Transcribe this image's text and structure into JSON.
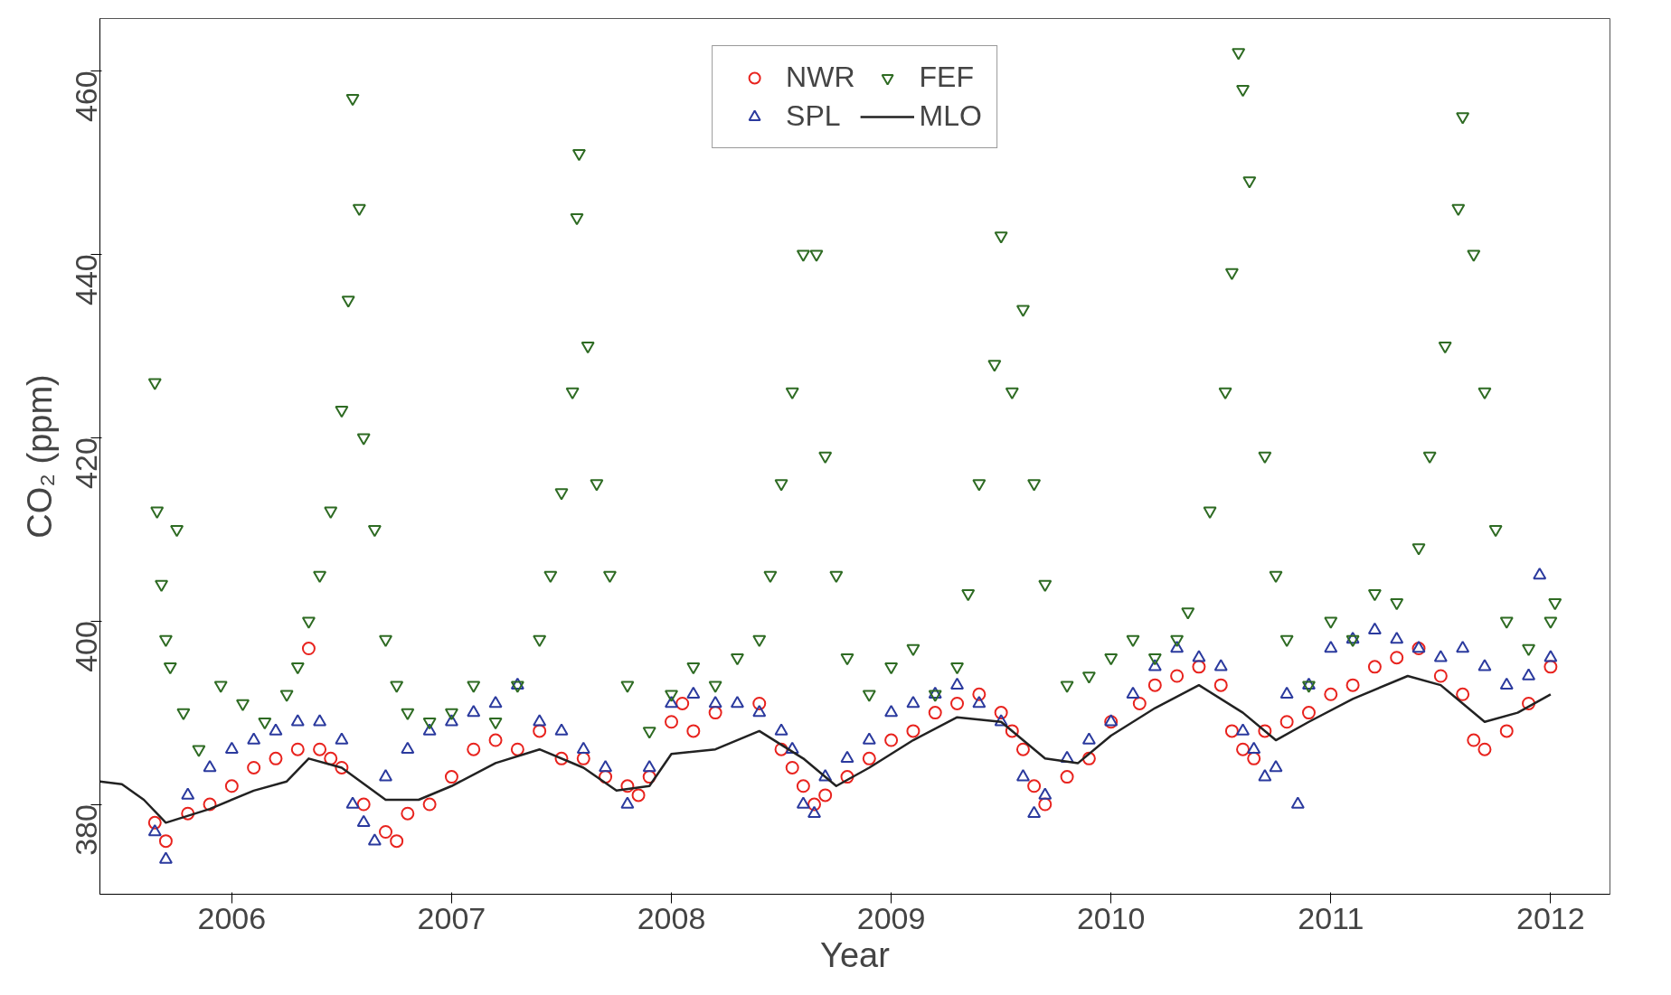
{
  "chart_data": {
    "type": "scatter",
    "xlabel": "Year",
    "ylabel": "CO₂ (ppm)",
    "xlim": [
      2005.4,
      2012.27
    ],
    "ylim": [
      370.2,
      465.7
    ],
    "xticks": [
      2006,
      2007,
      2008,
      2009,
      2010,
      2011,
      2012
    ],
    "yticks": [
      380,
      400,
      420,
      440,
      460
    ],
    "grid": false,
    "legend": "top",
    "series": [
      {
        "name": "NWR",
        "color": "#e8231e",
        "marker": "circle",
        "x": [
          2005.65,
          2005.7,
          2005.8,
          2005.9,
          2006.0,
          2006.1,
          2006.2,
          2006.3,
          2006.35,
          2006.4,
          2006.45,
          2006.5,
          2006.6,
          2006.7,
          2006.75,
          2006.8,
          2006.9,
          2007.0,
          2007.1,
          2007.2,
          2007.3,
          2007.4,
          2007.5,
          2007.6,
          2007.7,
          2007.8,
          2007.85,
          2007.9,
          2008.0,
          2008.05,
          2008.1,
          2008.2,
          2008.4,
          2008.5,
          2008.55,
          2008.6,
          2008.65,
          2008.7,
          2008.8,
          2008.9,
          2009.0,
          2009.1,
          2009.2,
          2009.3,
          2009.4,
          2009.5,
          2009.55,
          2009.6,
          2009.65,
          2009.7,
          2009.8,
          2009.9,
          2010.0,
          2010.13,
          2010.2,
          2010.3,
          2010.4,
          2010.5,
          2010.55,
          2010.6,
          2010.65,
          2010.7,
          2010.8,
          2010.9,
          2011.0,
          2011.1,
          2011.2,
          2011.3,
          2011.4,
          2011.5,
          2011.6,
          2011.65,
          2011.7,
          2011.8,
          2011.9,
          2012.0
        ],
        "values": [
          378,
          376,
          379,
          380,
          382,
          384,
          385,
          386,
          397,
          386,
          385,
          384,
          380,
          377,
          376,
          379,
          380,
          383,
          386,
          387,
          386,
          388,
          385,
          385,
          383,
          382,
          381,
          383,
          389,
          391,
          388,
          390,
          391,
          386,
          384,
          382,
          380,
          381,
          383,
          385,
          387,
          388,
          390,
          391,
          392,
          390,
          388,
          386,
          382,
          380,
          383,
          385,
          389,
          391,
          393,
          394,
          395,
          393,
          388,
          386,
          385,
          388,
          389,
          390,
          392,
          393,
          395,
          396,
          397,
          394,
          392,
          387,
          386,
          388,
          391,
          395
        ]
      },
      {
        "name": "SPL",
        "color": "#2b3a9e",
        "marker": "triangle",
        "x": [
          2005.65,
          2005.7,
          2005.8,
          2005.9,
          2006.0,
          2006.1,
          2006.2,
          2006.3,
          2006.4,
          2006.5,
          2006.55,
          2006.6,
          2006.65,
          2006.7,
          2006.8,
          2006.9,
          2007.0,
          2007.1,
          2007.2,
          2007.3,
          2007.4,
          2007.5,
          2007.6,
          2007.7,
          2007.8,
          2007.9,
          2008.0,
          2008.1,
          2008.2,
          2008.3,
          2008.4,
          2008.5,
          2008.55,
          2008.6,
          2008.65,
          2008.7,
          2008.8,
          2008.9,
          2009.0,
          2009.1,
          2009.2,
          2009.3,
          2009.4,
          2009.5,
          2009.6,
          2009.65,
          2009.7,
          2009.8,
          2009.9,
          2010.0,
          2010.1,
          2010.2,
          2010.3,
          2010.4,
          2010.5,
          2010.6,
          2010.65,
          2010.7,
          2010.75,
          2010.8,
          2010.85,
          2010.9,
          2011.0,
          2011.1,
          2011.2,
          2011.3,
          2011.4,
          2011.5,
          2011.6,
          2011.7,
          2011.8,
          2011.9,
          2011.95,
          2012.0
        ],
        "values": [
          377,
          374,
          381,
          384,
          386,
          387,
          388,
          389,
          389,
          387,
          380,
          378,
          376,
          383,
          386,
          388,
          389,
          390,
          391,
          393,
          389,
          388,
          386,
          384,
          380,
          384,
          391,
          392,
          391,
          391,
          390,
          388,
          386,
          380,
          379,
          383,
          385,
          387,
          390,
          391,
          392,
          393,
          391,
          389,
          383,
          379,
          381,
          385,
          387,
          389,
          392,
          395,
          397,
          396,
          395,
          388,
          386,
          383,
          384,
          392,
          380,
          393,
          397,
          398,
          399,
          398,
          397,
          396,
          397,
          395,
          393,
          394,
          405,
          396
        ]
      },
      {
        "name": "FEF",
        "color": "#2e6b23",
        "marker": "triangle_down",
        "x": [
          2005.65,
          2005.66,
          2005.68,
          2005.7,
          2005.72,
          2005.75,
          2005.78,
          2005.85,
          2005.95,
          2006.05,
          2006.15,
          2006.25,
          2006.3,
          2006.35,
          2006.4,
          2006.45,
          2006.5,
          2006.53,
          2006.55,
          2006.58,
          2006.6,
          2006.65,
          2006.7,
          2006.75,
          2006.8,
          2006.9,
          2007.0,
          2007.1,
          2007.2,
          2007.3,
          2007.4,
          2007.45,
          2007.5,
          2007.55,
          2007.57,
          2007.58,
          2007.62,
          2007.66,
          2007.72,
          2007.8,
          2007.9,
          2008.0,
          2008.1,
          2008.2,
          2008.3,
          2008.4,
          2008.45,
          2008.5,
          2008.55,
          2008.6,
          2008.66,
          2008.7,
          2008.75,
          2008.8,
          2008.9,
          2009.0,
          2009.1,
          2009.2,
          2009.3,
          2009.35,
          2009.4,
          2009.47,
          2009.5,
          2009.55,
          2009.6,
          2009.65,
          2009.7,
          2009.8,
          2009.9,
          2010.0,
          2010.1,
          2010.2,
          2010.3,
          2010.35,
          2010.45,
          2010.52,
          2010.55,
          2010.58,
          2010.6,
          2010.63,
          2010.7,
          2010.75,
          2010.8,
          2010.9,
          2011.0,
          2011.1,
          2011.2,
          2011.3,
          2011.4,
          2011.45,
          2011.52,
          2011.58,
          2011.6,
          2011.65,
          2011.7,
          2011.75,
          2011.8,
          2011.9,
          2012.0,
          2012.02
        ],
        "values": [
          426,
          412,
          404,
          398,
          395,
          410,
          390,
          386,
          393,
          391,
          389,
          392,
          395,
          400,
          405,
          412,
          423,
          435,
          457,
          445,
          420,
          410,
          398,
          393,
          390,
          389,
          390,
          393,
          389,
          393,
          398,
          405,
          414,
          425,
          444,
          451,
          430,
          415,
          405,
          393,
          388,
          392,
          395,
          393,
          396,
          398,
          405,
          415,
          425,
          440,
          440,
          418,
          405,
          396,
          392,
          395,
          397,
          392,
          395,
          403,
          415,
          428,
          442,
          425,
          434,
          415,
          404,
          393,
          394,
          396,
          398,
          396,
          398,
          401,
          412,
          425,
          438,
          462,
          458,
          448,
          418,
          405,
          398,
          393,
          400,
          398,
          403,
          402,
          408,
          418,
          430,
          445,
          455,
          440,
          425,
          410,
          400,
          397,
          400,
          402
        ]
      },
      {
        "name": "MLO",
        "color": "#222222",
        "type": "line",
        "line_style": "solid",
        "x": [
          2005.4,
          2005.5,
          2005.6,
          2005.7,
          2005.9,
          2006.1,
          2006.25,
          2006.35,
          2006.5,
          2006.7,
          2006.85,
          2007.0,
          2007.2,
          2007.4,
          2007.6,
          2007.75,
          2007.9,
          2008.0,
          2008.2,
          2008.4,
          2008.6,
          2008.75,
          2008.9,
          2009.1,
          2009.3,
          2009.5,
          2009.7,
          2009.85,
          2010.0,
          2010.2,
          2010.4,
          2010.6,
          2010.75,
          2010.9,
          2011.1,
          2011.35,
          2011.5,
          2011.7,
          2011.85,
          2012.0
        ],
        "values": [
          382.5,
          382.2,
          380.5,
          378,
          379.5,
          381.5,
          382.5,
          385,
          384,
          380.5,
          380.5,
          382,
          384.5,
          386,
          384,
          381.5,
          382,
          385.5,
          386,
          388,
          385,
          382,
          384,
          387,
          389.5,
          389,
          385,
          384.5,
          387.5,
          390.5,
          393,
          390,
          387,
          389,
          391.5,
          394,
          393,
          389,
          390,
          392
        ]
      }
    ]
  }
}
